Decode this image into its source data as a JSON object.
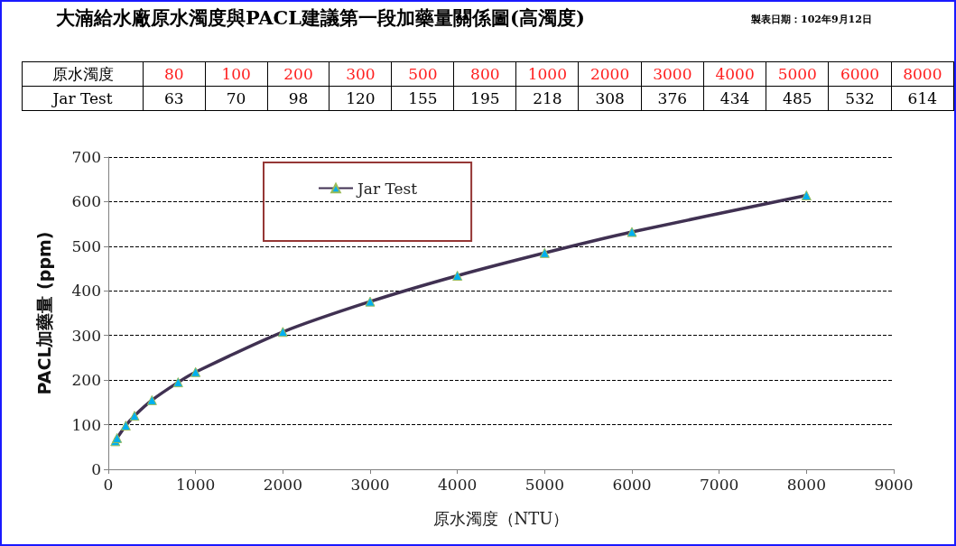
{
  "chart_data": [
    {
      "type": "heatmap",
      "title": "大湳給水廠原水濁度與PACL建議第一段加藥量關係圖(高濁度)",
      "subtitle": "製表日期：102年9月12日",
      "xlabel": "原水濁度",
      "categories": [
        "80",
        "100",
        "200",
        "300",
        "500",
        "800",
        "1000",
        "2000",
        "3000",
        "4000",
        "5000",
        "6000",
        "8000"
      ],
      "y_categories": [
        "Jar Test"
      ],
      "cells": [
        [
          63,
          70,
          98,
          120,
          155,
          195,
          218,
          308,
          376,
          434,
          485,
          532,
          614
        ]
      ],
      "data_labels": true
    },
    {
      "type": "line",
      "xlabel": "原水濁度（NTU）",
      "ylabel": "PACL加藥量 (ppm)",
      "x": [
        80,
        100,
        200,
        300,
        500,
        800,
        1000,
        2000,
        3000,
        4000,
        5000,
        6000,
        8000
      ],
      "series": [
        {
          "name": "Jar Test",
          "color": "#403152",
          "values": [
            63,
            70,
            98,
            120,
            155,
            195,
            218,
            308,
            376,
            434,
            485,
            532,
            614
          ]
        }
      ],
      "xlim": [
        0,
        9000
      ],
      "xticks": [
        0,
        1000,
        2000,
        3000,
        4000,
        5000,
        6000,
        7000,
        8000,
        9000
      ],
      "ylim": [
        0,
        700
      ],
      "yticks": [
        0,
        100,
        200,
        300,
        400,
        500,
        600,
        700
      ],
      "grid": "y",
      "legend": "top",
      "marker": "triangle",
      "line_style": "solid"
    }
  ]
}
